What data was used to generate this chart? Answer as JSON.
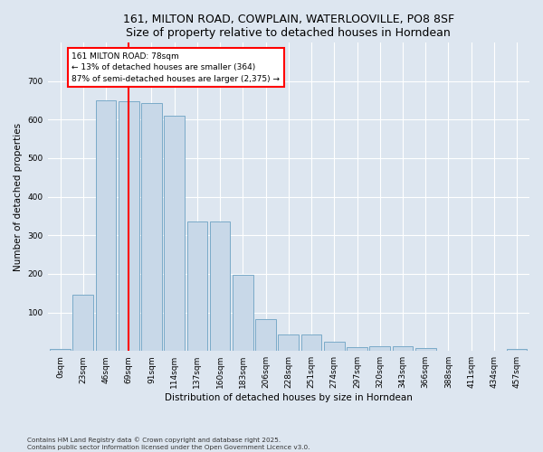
{
  "title": "161, MILTON ROAD, COWPLAIN, WATERLOOVILLE, PO8 8SF",
  "subtitle": "Size of property relative to detached houses in Horndean",
  "xlabel": "Distribution of detached houses by size in Horndean",
  "ylabel": "Number of detached properties",
  "bar_labels": [
    "0sqm",
    "23sqm",
    "46sqm",
    "69sqm",
    "91sqm",
    "114sqm",
    "137sqm",
    "160sqm",
    "183sqm",
    "206sqm",
    "228sqm",
    "251sqm",
    "274sqm",
    "297sqm",
    "320sqm",
    "343sqm",
    "366sqm",
    "388sqm",
    "411sqm",
    "434sqm",
    "457sqm"
  ],
  "bar_heights": [
    5,
    145,
    650,
    648,
    643,
    610,
    335,
    335,
    198,
    83,
    42,
    42,
    25,
    10,
    12,
    13,
    8,
    0,
    0,
    0,
    5
  ],
  "bar_color": "#c8d8e8",
  "bar_edge_color": "#7aaac8",
  "property_label": "161 MILTON ROAD: 78sqm",
  "annotation_line1": "← 13% of detached houses are smaller (364)",
  "annotation_line2": "87% of semi-detached houses are larger (2,375) →",
  "vline_color": "red",
  "vline_x_bin": 3,
  "annotation_box_color": "red",
  "ylim": [
    0,
    800
  ],
  "yticks": [
    0,
    100,
    200,
    300,
    400,
    500,
    600,
    700,
    800
  ],
  "footnote1": "Contains HM Land Registry data © Crown copyright and database right 2025.",
  "footnote2": "Contains public sector information licensed under the Open Government Licence v3.0.",
  "background_color": "#dde6f0",
  "plot_bg_color": "#dde6f0",
  "grid_color": "#ffffff",
  "title_fontsize": 9,
  "label_fontsize": 7.5,
  "tick_fontsize": 6.5
}
